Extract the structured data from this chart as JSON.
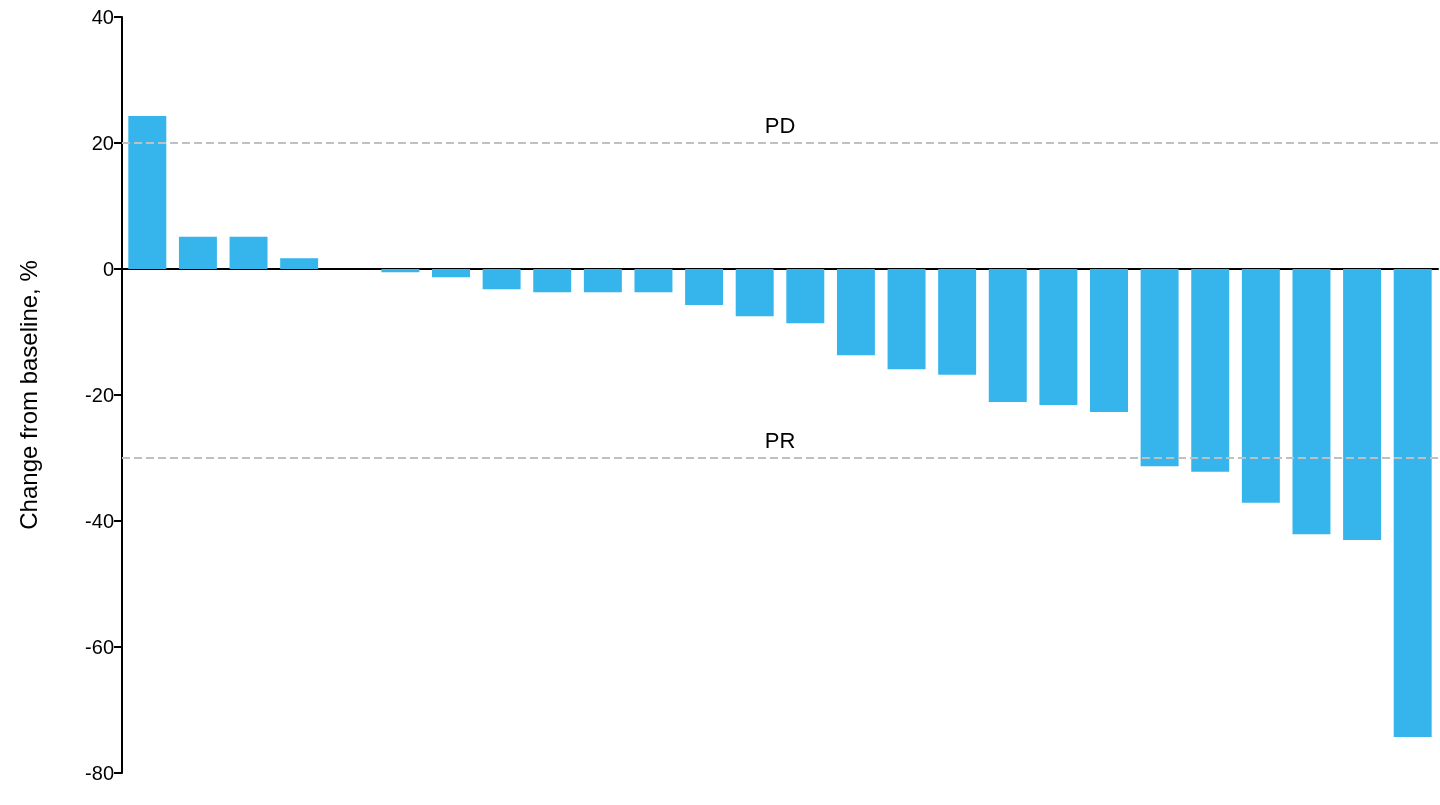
{
  "chart_data": {
    "type": "bar",
    "ylabel": "Change from baseline, %",
    "categories": [
      null,
      null,
      null,
      null,
      null,
      null,
      null,
      null,
      null,
      null,
      null,
      null,
      null,
      null,
      null,
      null,
      null,
      null,
      null,
      null,
      null,
      null,
      null,
      null,
      null,
      null
    ],
    "values": [
      24.3,
      5.1,
      5.1,
      1.7,
      0,
      -0.5,
      -1.3,
      -3.2,
      -3.7,
      -3.7,
      -3.7,
      -5.7,
      -7.5,
      -8.6,
      -13.7,
      -15.9,
      -16.8,
      -21.1,
      -21.6,
      -22.7,
      -31.3,
      -32.2,
      -37.1,
      -42.1,
      -43.0,
      -74.3
    ],
    "color": "#35b5ec",
    "ylim": [
      -80,
      40
    ],
    "yticks": [
      -80,
      -60,
      -40,
      -20,
      0,
      20,
      40
    ],
    "ref_lines": [
      {
        "axis": "y",
        "value": 20,
        "label": "PD",
        "color": "#c0c0c0",
        "line_style": "dashed"
      },
      {
        "axis": "y",
        "value": -30,
        "label": "PR",
        "color": "#c0c0c0",
        "line_style": "dashed"
      }
    ],
    "tick_labels": "y"
  }
}
